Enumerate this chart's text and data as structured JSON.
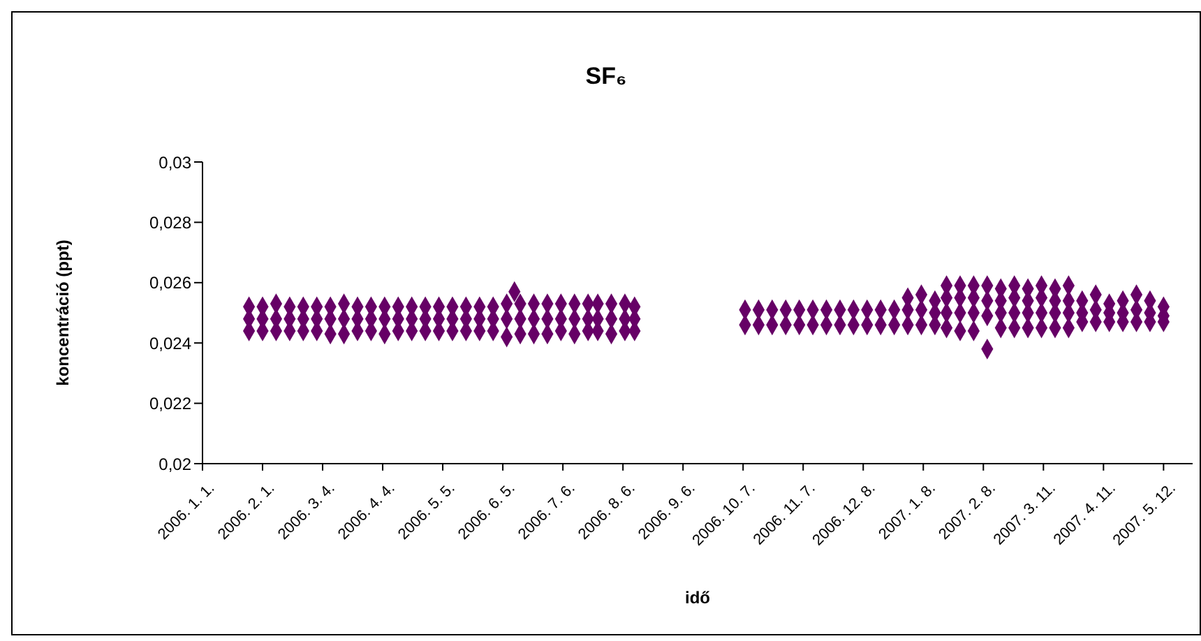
{
  "chart_data": {
    "type": "scatter",
    "title": "SF₆",
    "xlabel": "idő",
    "ylabel": "koncentráció (ppt)",
    "marker": "diamond",
    "legend": false,
    "grid": false,
    "xlim": [
      "2006-01-01",
      "2007-05-27"
    ],
    "xticks": [
      {
        "value": "2006-01-01",
        "label": "2006. 1. 1."
      },
      {
        "value": "2006-02-01",
        "label": "2006. 2. 1."
      },
      {
        "value": "2006-03-04",
        "label": "2006. 3. 4."
      },
      {
        "value": "2006-04-04",
        "label": "2006. 4. 4."
      },
      {
        "value": "2006-05-05",
        "label": "2006. 5. 5."
      },
      {
        "value": "2006-06-05",
        "label": "2006. 6. 5."
      },
      {
        "value": "2006-07-06",
        "label": "2006. 7. 6."
      },
      {
        "value": "2006-08-06",
        "label": "2006. 8. 6."
      },
      {
        "value": "2006-09-06",
        "label": "2006. 9. 6."
      },
      {
        "value": "2006-10-07",
        "label": "2006. 10. 7."
      },
      {
        "value": "2006-11-07",
        "label": "2006. 11. 7."
      },
      {
        "value": "2006-12-08",
        "label": "2006. 12. 8."
      },
      {
        "value": "2007-01-08",
        "label": "2007. 1. 8."
      },
      {
        "value": "2007-02-08",
        "label": "2007. 2. 8."
      },
      {
        "value": "2007-03-11",
        "label": "2007. 3. 11."
      },
      {
        "value": "2007-04-11",
        "label": "2007. 4. 11."
      },
      {
        "value": "2007-05-12",
        "label": "2007. 5. 12."
      }
    ],
    "ylim": [
      0.02,
      0.03
    ],
    "yticks": [
      {
        "value": 0.02,
        "label": "0,02"
      },
      {
        "value": 0.022,
        "label": "0,022"
      },
      {
        "value": 0.024,
        "label": "0,024"
      },
      {
        "value": 0.026,
        "label": "0,026"
      },
      {
        "value": 0.028,
        "label": "0,028"
      },
      {
        "value": 0.03,
        "label": "0,03"
      }
    ],
    "series": [
      {
        "color": "#660066",
        "x": [
          "2006-01-25",
          "2006-01-25",
          "2006-01-25",
          "2006-02-01",
          "2006-02-01",
          "2006-02-01",
          "2006-02-08",
          "2006-02-08",
          "2006-02-08",
          "2006-02-15",
          "2006-02-15",
          "2006-02-15",
          "2006-02-22",
          "2006-02-22",
          "2006-02-22",
          "2006-03-01",
          "2006-03-01",
          "2006-03-01",
          "2006-03-08",
          "2006-03-08",
          "2006-03-08",
          "2006-03-15",
          "2006-03-15",
          "2006-03-15",
          "2006-03-22",
          "2006-03-22",
          "2006-03-22",
          "2006-03-29",
          "2006-03-29",
          "2006-03-29",
          "2006-04-05",
          "2006-04-05",
          "2006-04-05",
          "2006-04-12",
          "2006-04-12",
          "2006-04-12",
          "2006-04-19",
          "2006-04-19",
          "2006-04-19",
          "2006-04-26",
          "2006-04-26",
          "2006-04-26",
          "2006-05-03",
          "2006-05-03",
          "2006-05-03",
          "2006-05-10",
          "2006-05-10",
          "2006-05-10",
          "2006-05-17",
          "2006-05-17",
          "2006-05-17",
          "2006-05-24",
          "2006-05-24",
          "2006-05-24",
          "2006-05-31",
          "2006-05-31",
          "2006-05-31",
          "2006-06-07",
          "2006-06-07",
          "2006-06-07",
          "2006-06-11",
          "2006-06-14",
          "2006-06-14",
          "2006-06-14",
          "2006-06-21",
          "2006-06-21",
          "2006-06-21",
          "2006-06-28",
          "2006-06-28",
          "2006-06-28",
          "2006-07-05",
          "2006-07-05",
          "2006-07-05",
          "2006-07-12",
          "2006-07-12",
          "2006-07-12",
          "2006-07-19",
          "2006-07-19",
          "2006-07-19",
          "2006-07-24",
          "2006-07-24",
          "2006-07-24",
          "2006-07-31",
          "2006-07-31",
          "2006-07-31",
          "2006-08-07",
          "2006-08-07",
          "2006-08-07",
          "2006-08-12",
          "2006-08-12",
          "2006-08-12",
          "2006-10-08",
          "2006-10-08",
          "2006-10-15",
          "2006-10-15",
          "2006-10-22",
          "2006-10-22",
          "2006-10-29",
          "2006-10-29",
          "2006-11-05",
          "2006-11-05",
          "2006-11-12",
          "2006-11-12",
          "2006-11-19",
          "2006-11-19",
          "2006-11-26",
          "2006-11-26",
          "2006-12-03",
          "2006-12-03",
          "2006-12-10",
          "2006-12-10",
          "2006-12-17",
          "2006-12-17",
          "2006-12-24",
          "2006-12-24",
          "2006-12-31",
          "2006-12-31",
          "2006-12-31",
          "2007-01-07",
          "2007-01-07",
          "2007-01-07",
          "2007-01-14",
          "2007-01-14",
          "2007-01-14",
          "2007-01-20",
          "2007-01-20",
          "2007-01-20",
          "2007-01-20",
          "2007-01-27",
          "2007-01-27",
          "2007-01-27",
          "2007-01-27",
          "2007-02-03",
          "2007-02-03",
          "2007-02-03",
          "2007-02-03",
          "2007-02-10",
          "2007-02-10",
          "2007-02-10",
          "2007-02-10",
          "2007-02-17",
          "2007-02-17",
          "2007-02-17",
          "2007-02-17",
          "2007-02-24",
          "2007-02-24",
          "2007-02-24",
          "2007-02-24",
          "2007-03-03",
          "2007-03-03",
          "2007-03-03",
          "2007-03-03",
          "2007-03-10",
          "2007-03-10",
          "2007-03-10",
          "2007-03-10",
          "2007-03-17",
          "2007-03-17",
          "2007-03-17",
          "2007-03-17",
          "2007-03-24",
          "2007-03-24",
          "2007-03-24",
          "2007-03-24",
          "2007-03-31",
          "2007-03-31",
          "2007-03-31",
          "2007-04-07",
          "2007-04-07",
          "2007-04-07",
          "2007-04-14",
          "2007-04-14",
          "2007-04-14",
          "2007-04-21",
          "2007-04-21",
          "2007-04-21",
          "2007-04-28",
          "2007-04-28",
          "2007-04-28",
          "2007-05-05",
          "2007-05-05",
          "2007-05-05",
          "2007-05-12",
          "2007-05-12",
          "2007-05-12"
        ],
        "values": [
          0.0252,
          0.0248,
          0.0244,
          0.0252,
          0.0248,
          0.0244,
          0.0253,
          0.0248,
          0.0244,
          0.0252,
          0.0248,
          0.0244,
          0.0252,
          0.0248,
          0.0244,
          0.0252,
          0.0248,
          0.0244,
          0.0252,
          0.0248,
          0.0243,
          0.0253,
          0.0248,
          0.0243,
          0.0252,
          0.0248,
          0.0244,
          0.0252,
          0.0248,
          0.0244,
          0.0252,
          0.0248,
          0.0243,
          0.0252,
          0.0248,
          0.0244,
          0.0252,
          0.0248,
          0.0244,
          0.0252,
          0.0248,
          0.0244,
          0.0252,
          0.0248,
          0.0244,
          0.0252,
          0.0248,
          0.0244,
          0.0252,
          0.0248,
          0.0244,
          0.0252,
          0.0248,
          0.0244,
          0.0252,
          0.0248,
          0.0244,
          0.0253,
          0.0248,
          0.0242,
          0.0257,
          0.0253,
          0.0248,
          0.0243,
          0.0253,
          0.0248,
          0.0243,
          0.0253,
          0.0248,
          0.0243,
          0.0253,
          0.0248,
          0.0244,
          0.0253,
          0.0248,
          0.0243,
          0.0253,
          0.0248,
          0.0244,
          0.0253,
          0.0248,
          0.0244,
          0.0253,
          0.0248,
          0.0243,
          0.0253,
          0.0248,
          0.0244,
          0.0252,
          0.0248,
          0.0244,
          0.0251,
          0.0246,
          0.0251,
          0.0246,
          0.0251,
          0.0246,
          0.0251,
          0.0246,
          0.0251,
          0.0246,
          0.0251,
          0.0246,
          0.0251,
          0.0246,
          0.0251,
          0.0246,
          0.0251,
          0.0246,
          0.0251,
          0.0246,
          0.0251,
          0.0246,
          0.0251,
          0.0246,
          0.0255,
          0.0251,
          0.0246,
          0.0256,
          0.0251,
          0.0246,
          0.0254,
          0.025,
          0.0246,
          0.0259,
          0.0255,
          0.025,
          0.0245,
          0.0259,
          0.0255,
          0.025,
          0.0244,
          0.0259,
          0.0255,
          0.025,
          0.0244,
          0.0259,
          0.0254,
          0.0249,
          0.0238,
          0.0258,
          0.0254,
          0.025,
          0.0245,
          0.0259,
          0.0255,
          0.025,
          0.0245,
          0.0258,
          0.0254,
          0.025,
          0.0245,
          0.0259,
          0.0255,
          0.025,
          0.0245,
          0.0258,
          0.0254,
          0.025,
          0.0245,
          0.0259,
          0.0254,
          0.025,
          0.0245,
          0.0254,
          0.025,
          0.0247,
          0.0256,
          0.0251,
          0.0247,
          0.0253,
          0.025,
          0.0247,
          0.0254,
          0.025,
          0.0247,
          0.0256,
          0.0251,
          0.0247,
          0.0254,
          0.025,
          0.0247,
          0.0252,
          0.0249,
          0.0247
        ]
      }
    ]
  }
}
